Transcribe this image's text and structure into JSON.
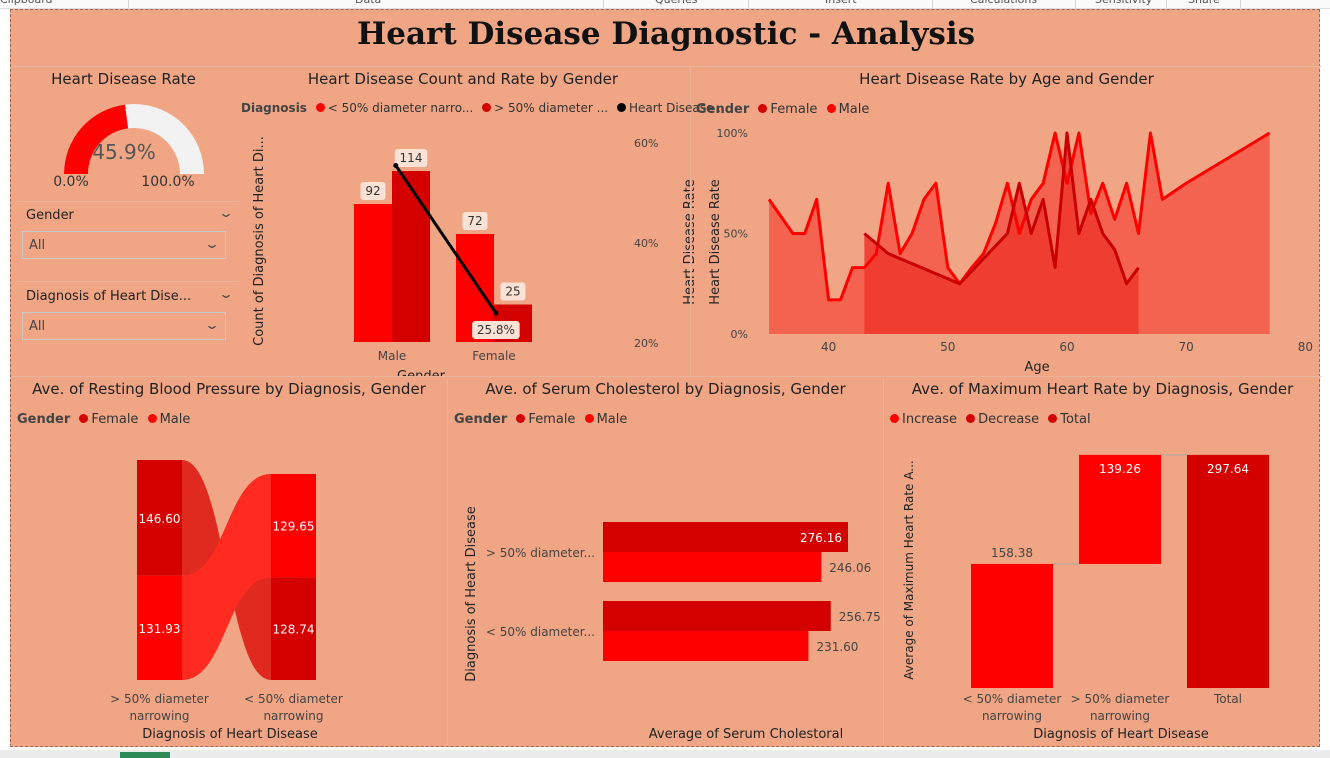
{
  "ribbon": {
    "items": [
      "Clipboard",
      "Data",
      "Queries",
      "Insert",
      "Calculations",
      "Sensitivity",
      "Share"
    ]
  },
  "title": "Heart Disease Diagnostic - Analysis",
  "colors": {
    "background": "#f0a585",
    "red": "#ff0000",
    "dark_red": "#d40000",
    "line": "#000000"
  },
  "gauge": {
    "title": "Heart Disease Rate",
    "value": 45.9,
    "value_label": "45.9%",
    "min_label": "0.0%",
    "max_label": "100.0%"
  },
  "slicers": [
    {
      "label": "Gender",
      "value": "All"
    },
    {
      "label": "Diagnosis of Heart Dise...",
      "value": "All"
    }
  ],
  "chart_data": [
    {
      "type": "bar",
      "title": "Heart Disease Count and Rate by Gender",
      "legend_title": "Diagnosis",
      "legend": [
        "< 50% diameter narro...",
        "> 50% diameter ...",
        "Heart Disease ..."
      ],
      "xlabel": "Gender",
      "ylabel": "Count of Diagnosis of Heart Di...",
      "y2label": "Heart Disease Rate",
      "categories": [
        "Male",
        "Female"
      ],
      "series": [
        {
          "name": "< 50% diameter narro...",
          "values": [
            92,
            72
          ],
          "labels": [
            "92",
            "72"
          ]
        },
        {
          "name": "> 50% diameter ...",
          "values": [
            114,
            25
          ],
          "labels": [
            "114",
            "25"
          ]
        }
      ],
      "line": {
        "name": "Heart Disease ...",
        "values": [
          55.3,
          25.8
        ],
        "point_labels": [
          "",
          "25.8%"
        ]
      },
      "ylim": [
        0,
        120
      ],
      "y2lim": [
        20,
        60
      ],
      "y2_ticks": [
        "60%",
        "40%",
        "20%"
      ]
    },
    {
      "type": "area",
      "title": "Heart Disease Rate by Age and Gender",
      "legend_title": "Gender",
      "legend": [
        "Female",
        "Male"
      ],
      "xlabel": "Age",
      "ylabel": "Heart Disease Rate",
      "xlim": [
        35,
        80
      ],
      "ylim": [
        0,
        100
      ],
      "x_ticks": [
        "40",
        "50",
        "60",
        "70",
        "80"
      ],
      "y_ticks": [
        "100%",
        "50%",
        "0%"
      ],
      "series": [
        {
          "name": "Female",
          "x": [
            43,
            44,
            45,
            51,
            55,
            56,
            57,
            58,
            59,
            60,
            61,
            62,
            63,
            64,
            65,
            66
          ],
          "y": [
            50,
            45,
            40,
            25,
            50,
            75,
            50,
            67,
            33,
            100,
            50,
            67,
            50,
            42,
            25,
            33
          ]
        },
        {
          "name": "Male",
          "x": [
            35,
            37,
            38,
            39,
            40,
            41,
            42,
            43,
            44,
            45,
            46,
            47,
            48,
            49,
            50,
            51,
            52,
            53,
            54,
            55,
            56,
            57,
            58,
            59,
            60,
            61,
            62,
            63,
            64,
            65,
            66,
            67,
            68,
            70,
            77
          ],
          "y": [
            67,
            50,
            50,
            67,
            17,
            17,
            33,
            33,
            40,
            75,
            40,
            50,
            67,
            75,
            33,
            25,
            33,
            40,
            55,
            75,
            50,
            67,
            75,
            100,
            75,
            100,
            60,
            75,
            57,
            75,
            50,
            100,
            67,
            75,
            100
          ]
        }
      ]
    },
    {
      "type": "bar",
      "title": "Ave. of Resting Blood Pressure by Diagnosis, Gender",
      "legend_title": "Gender",
      "legend": [
        "Female",
        "Male"
      ],
      "xlabel": "Diagnosis of Heart Disease",
      "categories": [
        "> 50% diameter narrowing",
        "< 50% diameter narrowing"
      ],
      "series": [
        {
          "name": "Female",
          "values": [
            146.6,
            128.74
          ]
        },
        {
          "name": "Male",
          "values": [
            131.93,
            129.65
          ]
        }
      ],
      "labels": [
        [
          "146.60",
          "131.93"
        ],
        [
          "129.65",
          "128.74"
        ]
      ]
    },
    {
      "type": "bar",
      "title": "Ave. of Serum Cholesterol by Diagnosis, Gender",
      "legend_title": "Gender",
      "legend": [
        "Female",
        "Male"
      ],
      "xlabel": "Average of Serum Cholestoral",
      "ylabel": "Diagnosis of Heart Disease",
      "categories": [
        "> 50% diameter...",
        "< 50% diameter..."
      ],
      "series": [
        {
          "name": "Female",
          "values": [
            276.16,
            256.75
          ],
          "labels": [
            "276.16",
            "256.75"
          ]
        },
        {
          "name": "Male",
          "values": [
            246.06,
            231.6
          ],
          "labels": [
            "246.06",
            "231.60"
          ]
        }
      ],
      "xlim": [
        0,
        300
      ]
    },
    {
      "type": "bar",
      "title": "Ave. of Maximum Heart Rate by Diagnosis, Gender",
      "legend": [
        "Increase",
        "Decrease",
        "Total"
      ],
      "xlabel": "Diagnosis of Heart Disease",
      "ylabel": "Average of Maximum Heart Rate A...",
      "categories": [
        "< 50% diameter narrowing",
        "> 50% diameter narrowing",
        "Total"
      ],
      "values": [
        158.38,
        139.26,
        297.64
      ],
      "labels": [
        "158.38",
        "139.26",
        "297.64"
      ],
      "ylim": [
        0,
        300
      ]
    }
  ]
}
